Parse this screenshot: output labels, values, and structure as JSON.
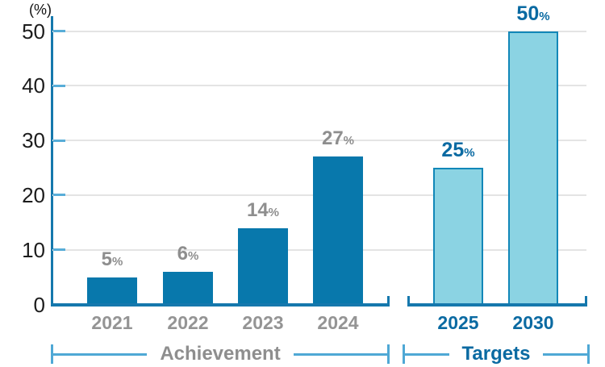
{
  "chart_data": {
    "type": "bar",
    "title": "",
    "ylabel": "(%)",
    "xlabel": "",
    "ylim": [
      0,
      50
    ],
    "yticks": [
      0,
      10,
      20,
      30,
      40,
      50
    ],
    "grid": true,
    "series": [
      {
        "name": "Achievement",
        "categories": [
          "2021",
          "2022",
          "2023",
          "2024"
        ],
        "values": [
          5,
          6,
          14,
          27
        ],
        "data_labels": [
          "5%",
          "6%",
          "14%",
          "27%"
        ]
      },
      {
        "name": "Targets",
        "categories": [
          "2025",
          "2030"
        ],
        "values": [
          25,
          50
        ],
        "data_labels": [
          "25%",
          "50%"
        ]
      }
    ]
  },
  "colors": {
    "achievement_bar_fill": "#0878ac",
    "target_bar_fill": "#8bd3e3",
    "target_bar_border": "#1287b8",
    "axis_line": "#1578ad",
    "axis_tick": "#58add8",
    "gridline": "#e4e4e4",
    "gray_label": "#8e8e8e",
    "gray_year_label": "#949494",
    "blue_label": "#0a6aa2",
    "bracket_line": "#4fa8d5",
    "ytick_text": "#1c1c1c"
  }
}
